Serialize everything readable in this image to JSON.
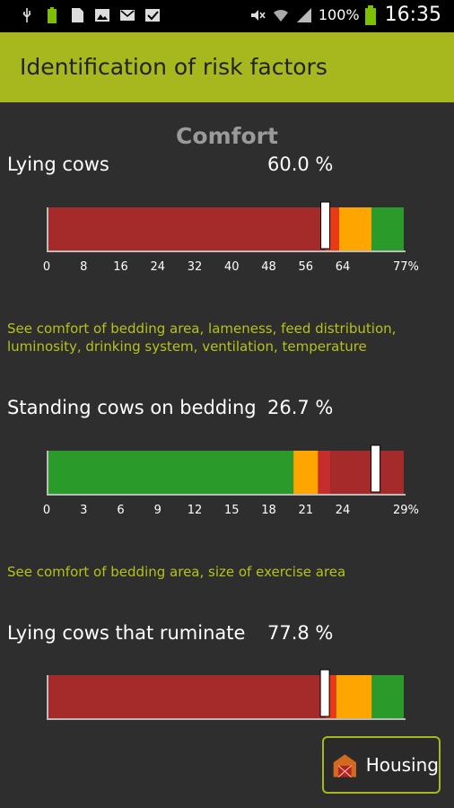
{
  "status_bar": {
    "battery_percent": "100%",
    "time": "16:35",
    "icons_left": [
      "usb-icon",
      "battery-full-icon",
      "sd-card-icon",
      "image-icon",
      "gmail-icon",
      "check-icon"
    ],
    "icons_right": [
      "mute-icon",
      "wifi-icon",
      "signal-icon",
      "battery-icon"
    ]
  },
  "app_bar": {
    "title": "Identification of risk factors"
  },
  "section": {
    "title": "Comfort"
  },
  "rows": [
    {
      "label": "Lying cows",
      "value": "60.0 %",
      "ticks": [
        "0",
        "8",
        "16",
        "24",
        "32",
        "40",
        "48",
        "56",
        "64",
        "77%"
      ],
      "scale_max": 77,
      "marker_value": 60.0,
      "segments": [
        {
          "color": "#a52a2a",
          "from": 0,
          "to": 60
        },
        {
          "color": "#e83a16",
          "from": 60,
          "to": 63
        },
        {
          "color": "#ffa500",
          "from": 63,
          "to": 70
        },
        {
          "color": "#2a9a2a",
          "from": 70,
          "to": 77
        }
      ],
      "advice": "See comfort of bedding area, lameness, feed distribution, luminosity, drinking system, ventilation, temperature"
    },
    {
      "label": "Standing cows on bedding",
      "value": "26.7 %",
      "ticks": [
        "0",
        "3",
        "6",
        "9",
        "12",
        "15",
        "18",
        "21",
        "24",
        "29%"
      ],
      "scale_max": 29,
      "marker_value": 26.7,
      "segments": [
        {
          "color": "#2a9a2a",
          "from": 0,
          "to": 20
        },
        {
          "color": "#ffa500",
          "from": 20,
          "to": 22
        },
        {
          "color": "#c62d2d",
          "from": 22,
          "to": 23
        },
        {
          "color": "#a52a2a",
          "from": 23,
          "to": 29
        }
      ],
      "advice": "See comfort of bedding area, size of exercise area"
    },
    {
      "label": "Lying cows that ruminate",
      "value": "77.8 %",
      "ticks": [],
      "scale_max": 100,
      "marker_value": 77.8,
      "segments": [
        {
          "color": "#a52a2a",
          "from": 0,
          "to": 78
        },
        {
          "color": "#e83a16",
          "from": 78,
          "to": 81
        },
        {
          "color": "#ffa500",
          "from": 81,
          "to": 91
        },
        {
          "color": "#2a9a2a",
          "from": 91,
          "to": 100
        }
      ],
      "advice": ""
    }
  ],
  "housing_button": {
    "label": "Housing",
    "icon": "barn-icon"
  },
  "colors": {
    "accent": "#a7b81f",
    "advice": "#b5c219",
    "background": "#2e2e2e"
  }
}
